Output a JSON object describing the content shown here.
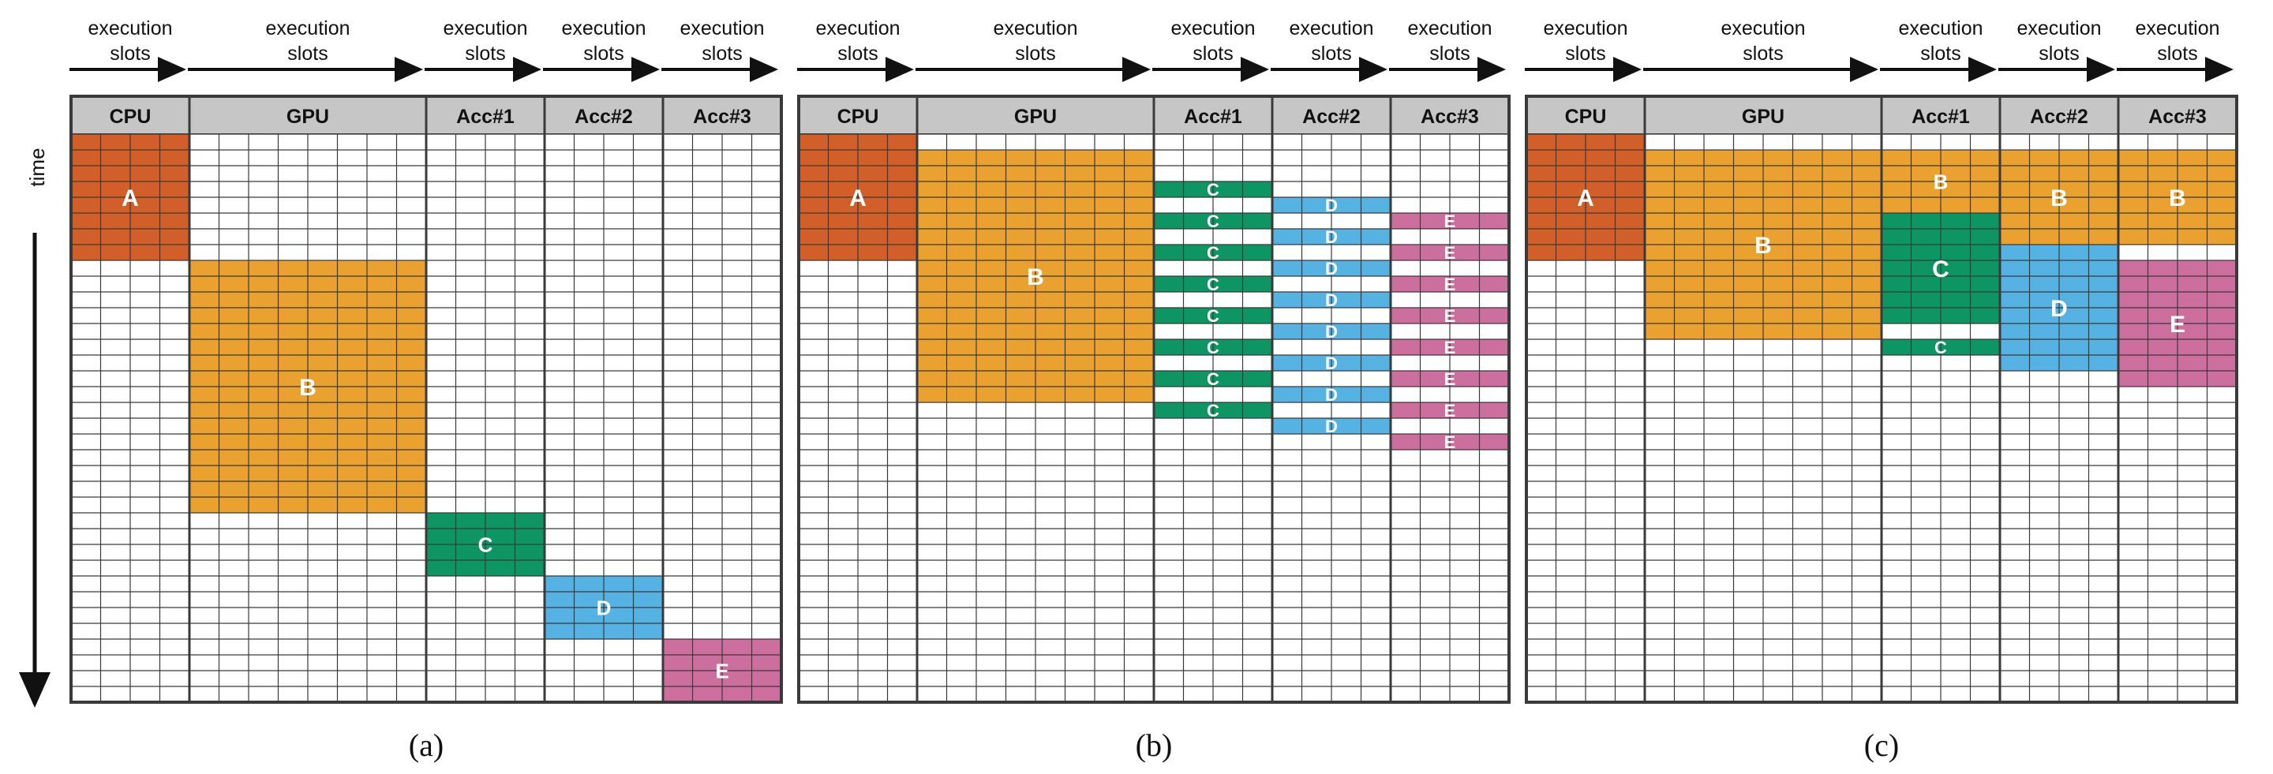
{
  "figure": {
    "time_label": "time",
    "slot_label_line1": "execution",
    "slot_label_line2": "slots",
    "colors": {
      "A": "#d25f29",
      "B": "#eba130",
      "C": "#0d9563",
      "D": "#55b2e2",
      "E": "#cc6f9f",
      "header": "#c6c6c6",
      "grid": "#3a3a3a"
    },
    "panels": [
      {
        "caption": "(a)",
        "columns": [
          {
            "name": "CPU",
            "slots": 4
          },
          {
            "name": "GPU",
            "slots": 8
          },
          {
            "name": "Acc#1",
            "slots": 4
          },
          {
            "name": "Acc#2",
            "slots": 4
          },
          {
            "name": "Acc#3",
            "slots": 4
          }
        ],
        "rows": 36,
        "tasks": [
          {
            "label": "A",
            "col": 0,
            "row_start": 0,
            "row_end": 8
          },
          {
            "label": "B",
            "col": 1,
            "row_start": 8,
            "row_end": 24
          },
          {
            "label": "C",
            "col": 2,
            "row_start": 24,
            "row_end": 28
          },
          {
            "label": "D",
            "col": 3,
            "row_start": 28,
            "row_end": 32
          },
          {
            "label": "E",
            "col": 4,
            "row_start": 32,
            "row_end": 36
          }
        ]
      },
      {
        "caption": "(b)",
        "columns": [
          {
            "name": "CPU",
            "slots": 4
          },
          {
            "name": "GPU",
            "slots": 8
          },
          {
            "name": "Acc#1",
            "slots": 4
          },
          {
            "name": "Acc#2",
            "slots": 4
          },
          {
            "name": "Acc#3",
            "slots": 4
          }
        ],
        "rows": 36,
        "tasks": [
          {
            "label": "A",
            "col": 0,
            "row_start": 0,
            "row_end": 8
          },
          {
            "label": "B",
            "col": 1,
            "row_start": 1,
            "row_end": 17
          },
          {
            "label": "C",
            "col": 2,
            "row_start": 3,
            "row_end": 4
          },
          {
            "label": "C",
            "col": 2,
            "row_start": 5,
            "row_end": 6
          },
          {
            "label": "C",
            "col": 2,
            "row_start": 7,
            "row_end": 8
          },
          {
            "label": "C",
            "col": 2,
            "row_start": 9,
            "row_end": 10
          },
          {
            "label": "C",
            "col": 2,
            "row_start": 11,
            "row_end": 12
          },
          {
            "label": "C",
            "col": 2,
            "row_start": 13,
            "row_end": 14
          },
          {
            "label": "C",
            "col": 2,
            "row_start": 15,
            "row_end": 16
          },
          {
            "label": "C",
            "col": 2,
            "row_start": 17,
            "row_end": 18
          },
          {
            "label": "D",
            "col": 3,
            "row_start": 4,
            "row_end": 5
          },
          {
            "label": "D",
            "col": 3,
            "row_start": 6,
            "row_end": 7
          },
          {
            "label": "D",
            "col": 3,
            "row_start": 8,
            "row_end": 9
          },
          {
            "label": "D",
            "col": 3,
            "row_start": 10,
            "row_end": 11
          },
          {
            "label": "D",
            "col": 3,
            "row_start": 12,
            "row_end": 13
          },
          {
            "label": "D",
            "col": 3,
            "row_start": 14,
            "row_end": 15
          },
          {
            "label": "D",
            "col": 3,
            "row_start": 16,
            "row_end": 17
          },
          {
            "label": "D",
            "col": 3,
            "row_start": 18,
            "row_end": 19
          },
          {
            "label": "E",
            "col": 4,
            "row_start": 5,
            "row_end": 6
          },
          {
            "label": "E",
            "col": 4,
            "row_start": 7,
            "row_end": 8
          },
          {
            "label": "E",
            "col": 4,
            "row_start": 9,
            "row_end": 10
          },
          {
            "label": "E",
            "col": 4,
            "row_start": 11,
            "row_end": 12
          },
          {
            "label": "E",
            "col": 4,
            "row_start": 13,
            "row_end": 14
          },
          {
            "label": "E",
            "col": 4,
            "row_start": 15,
            "row_end": 16
          },
          {
            "label": "E",
            "col": 4,
            "row_start": 17,
            "row_end": 18
          },
          {
            "label": "E",
            "col": 4,
            "row_start": 19,
            "row_end": 20
          }
        ]
      },
      {
        "caption": "(c)",
        "columns": [
          {
            "name": "CPU",
            "slots": 4
          },
          {
            "name": "GPU",
            "slots": 8
          },
          {
            "name": "Acc#1",
            "slots": 4
          },
          {
            "name": "Acc#2",
            "slots": 4
          },
          {
            "name": "Acc#3",
            "slots": 4
          }
        ],
        "rows": 36,
        "tasks": [
          {
            "label": "A",
            "col": 0,
            "row_start": 0,
            "row_end": 8
          },
          {
            "label": "B",
            "col": 1,
            "row_start": 1,
            "row_end": 13
          },
          {
            "label": "B",
            "col": 2,
            "row_start": 1,
            "row_end": 5
          },
          {
            "label": "B",
            "col": 3,
            "row_start": 1,
            "row_end": 7
          },
          {
            "label": "B",
            "col": 4,
            "row_start": 1,
            "row_end": 7
          },
          {
            "label": "C",
            "col": 2,
            "row_start": 5,
            "row_end": 12
          },
          {
            "label": "C",
            "col": 2,
            "row_start": 13,
            "row_end": 14
          },
          {
            "label": "D",
            "col": 3,
            "row_start": 7,
            "row_end": 15
          },
          {
            "label": "E",
            "col": 4,
            "row_start": 8,
            "row_end": 16
          }
        ]
      }
    ]
  }
}
